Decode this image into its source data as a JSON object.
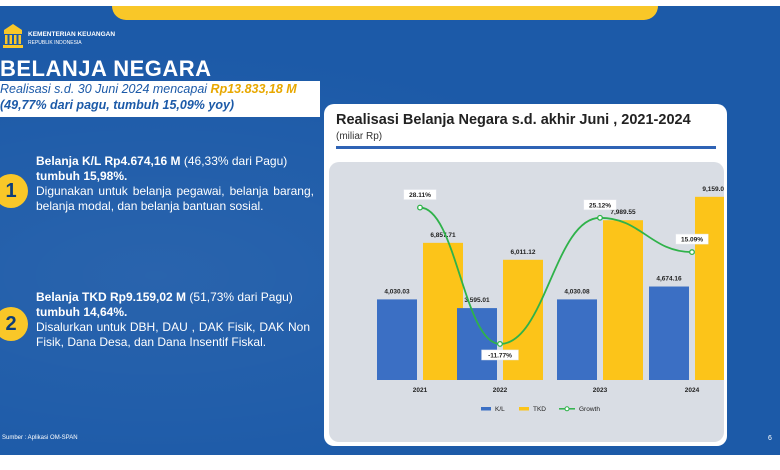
{
  "header": {
    "ministry_name": "KEMENTERIAN KEUANGAN",
    "ministry_sub": "REPUBLIK INDONESIA",
    "title": "BELANJA NEGARA",
    "subtitle_prefix": "Realisasi s.d. 30 Juni 2024 mencapai ",
    "subtitle_amount": "Rp13.833,18 M",
    "subtitle_line2": "(49,77% dari pagu, tumbuh 15,09% yoy)"
  },
  "points": [
    {
      "number": "1",
      "head_bold": "Belanja K/L Rp4.674,16 M",
      "head_norm": " (46,33% dari Pagu)",
      "growth": "tumbuh 15,98%.",
      "desc": "Digunakan untuk belanja pegawai, belanja barang, belanja modal, dan belanja bantuan sosial."
    },
    {
      "number": "2",
      "head_bold": "Belanja TKD Rp9.159,02 M",
      "head_norm": " (51,73% dari Pagu)",
      "growth": "tumbuh 14,64%.",
      "desc": "Disalurkan untuk DBH, DAU , DAK Fisik, DAK Non Fisik, Dana Desa, dan Dana Insentif Fiskal."
    }
  ],
  "footer": {
    "source": "Sumber : Aplikasi OM-SPAN",
    "page_number": "6"
  },
  "colors": {
    "background": "#1c5aa8",
    "accent": "#f9c728",
    "kl_bar": "#3b6fc4",
    "tkd_bar": "#fcc419",
    "growth_line": "#2fb24a"
  },
  "chart_data": {
    "type": "bar",
    "title": "Realisasi Belanja Negara s.d. akhir Juni , 2021-2024",
    "unit_label": "(miliar Rp)",
    "categories": [
      "2021",
      "2022",
      "2023",
      "2024"
    ],
    "series": [
      {
        "name": "K/L",
        "values": [
          4030.03,
          3595.01,
          4030.08,
          4674.16
        ],
        "labels": [
          "4,030.03",
          "3,595.01",
          "4,030.08",
          "4,674.16"
        ]
      },
      {
        "name": "TKD",
        "values": [
          6857.71,
          6011.12,
          7989.55,
          9159.02
        ],
        "labels": [
          "6,857.71",
          "6,011.12",
          "7,989.55",
          "9,159.02"
        ]
      }
    ],
    "line_series": {
      "name": "Growth",
      "values": [
        28.11,
        -11.77,
        25.12,
        15.09
      ],
      "labels": [
        "28.11%",
        "-11.77%",
        "25.12%",
        "15.09%"
      ]
    },
    "legend_position": "bottom",
    "grid": false
  }
}
